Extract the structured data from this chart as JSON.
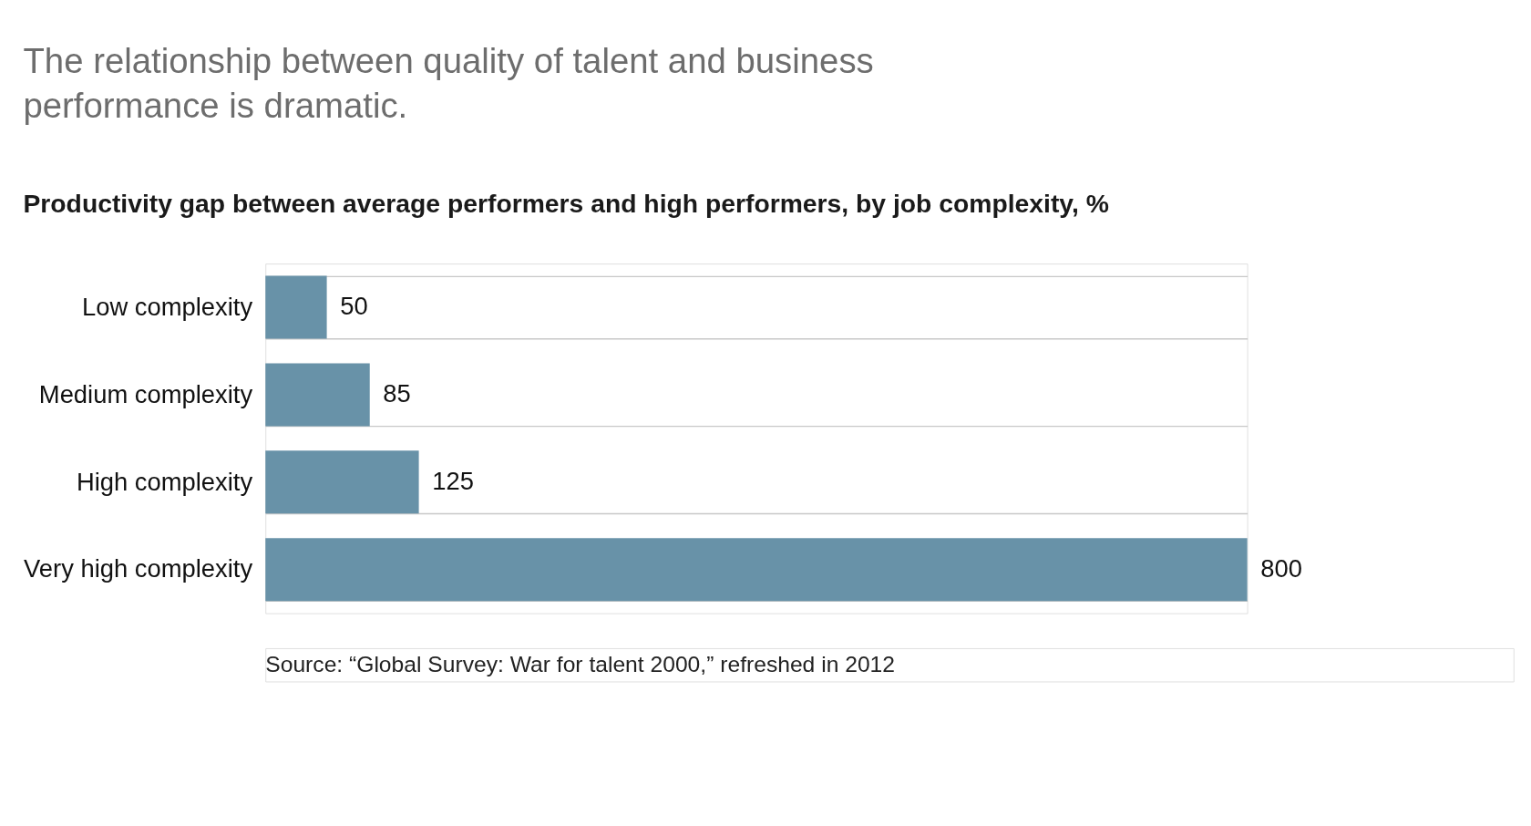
{
  "chart_data": {
    "type": "bar",
    "orientation": "horizontal",
    "title": [
      "The relationship between quality of talent and business",
      "performance is dramatic."
    ],
    "subtitle": "Productivity gap between average performers and high performers, by job complexity, %",
    "categories": [
      "Low complexity",
      "Medium complexity",
      "High complexity",
      "Very high complexity"
    ],
    "values": [
      50,
      85,
      125,
      800
    ],
    "color": "#6892a8",
    "data_labels": true,
    "grid": "y",
    "annotations": [
      "Source: “Global Survey: War for talent 2000,” refreshed in 2012"
    ]
  }
}
